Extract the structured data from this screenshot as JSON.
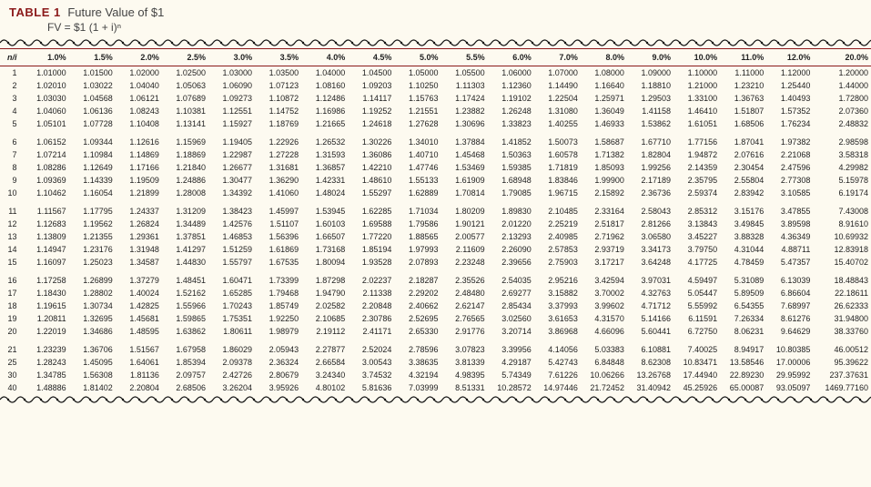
{
  "title_label": "TABLE 1",
  "title_text": "Future Value of $1",
  "subtitle": "FV = $1 (1 + i)ⁿ",
  "colors": {
    "accent": "#8b1a1a",
    "background": "#fdfaf0",
    "text": "#222222"
  },
  "header_first": "n/i",
  "columns": [
    "1.0%",
    "1.5%",
    "2.0%",
    "2.5%",
    "3.0%",
    "3.5%",
    "4.0%",
    "4.5%",
    "5.0%",
    "5.5%",
    "6.0%",
    "7.0%",
    "8.0%",
    "9.0%",
    "10.0%",
    "11.0%",
    "12.0%",
    "20.0%"
  ],
  "groups": [
    {
      "rows": [
        {
          "n": "1",
          "v": [
            "1.01000",
            "1.01500",
            "1.02000",
            "1.02500",
            "1.03000",
            "1.03500",
            "1.04000",
            "1.04500",
            "1.05000",
            "1.05500",
            "1.06000",
            "1.07000",
            "1.08000",
            "1.09000",
            "1.10000",
            "1.11000",
            "1.12000",
            "1.20000"
          ]
        },
        {
          "n": "2",
          "v": [
            "1.02010",
            "1.03022",
            "1.04040",
            "1.05063",
            "1.06090",
            "1.07123",
            "1.08160",
            "1.09203",
            "1.10250",
            "1.11303",
            "1.12360",
            "1.14490",
            "1.16640",
            "1.18810",
            "1.21000",
            "1.23210",
            "1.25440",
            "1.44000"
          ]
        },
        {
          "n": "3",
          "v": [
            "1.03030",
            "1.04568",
            "1.06121",
            "1.07689",
            "1.09273",
            "1.10872",
            "1.12486",
            "1.14117",
            "1.15763",
            "1.17424",
            "1.19102",
            "1.22504",
            "1.25971",
            "1.29503",
            "1.33100",
            "1.36763",
            "1.40493",
            "1.72800"
          ]
        },
        {
          "n": "4",
          "v": [
            "1.04060",
            "1.06136",
            "1.08243",
            "1.10381",
            "1.12551",
            "1.14752",
            "1.16986",
            "1.19252",
            "1.21551",
            "1.23882",
            "1.26248",
            "1.31080",
            "1.36049",
            "1.41158",
            "1.46410",
            "1.51807",
            "1.57352",
            "2.07360"
          ]
        },
        {
          "n": "5",
          "v": [
            "1.05101",
            "1.07728",
            "1.10408",
            "1.13141",
            "1.15927",
            "1.18769",
            "1.21665",
            "1.24618",
            "1.27628",
            "1.30696",
            "1.33823",
            "1.40255",
            "1.46933",
            "1.53862",
            "1.61051",
            "1.68506",
            "1.76234",
            "2.48832"
          ]
        }
      ]
    },
    {
      "rows": [
        {
          "n": "6",
          "v": [
            "1.06152",
            "1.09344",
            "1.12616",
            "1.15969",
            "1.19405",
            "1.22926",
            "1.26532",
            "1.30226",
            "1.34010",
            "1.37884",
            "1.41852",
            "1.50073",
            "1.58687",
            "1.67710",
            "1.77156",
            "1.87041",
            "1.97382",
            "2.98598"
          ]
        },
        {
          "n": "7",
          "v": [
            "1.07214",
            "1.10984",
            "1.14869",
            "1.18869",
            "1.22987",
            "1.27228",
            "1.31593",
            "1.36086",
            "1.40710",
            "1.45468",
            "1.50363",
            "1.60578",
            "1.71382",
            "1.82804",
            "1.94872",
            "2.07616",
            "2.21068",
            "3.58318"
          ]
        },
        {
          "n": "8",
          "v": [
            "1.08286",
            "1.12649",
            "1.17166",
            "1.21840",
            "1.26677",
            "1.31681",
            "1.36857",
            "1.42210",
            "1.47746",
            "1.53469",
            "1.59385",
            "1.71819",
            "1.85093",
            "1.99256",
            "2.14359",
            "2.30454",
            "2.47596",
            "4.29982"
          ]
        },
        {
          "n": "9",
          "v": [
            "1.09369",
            "1.14339",
            "1.19509",
            "1.24886",
            "1.30477",
            "1.36290",
            "1.42331",
            "1.48610",
            "1.55133",
            "1.61909",
            "1.68948",
            "1.83846",
            "1.99900",
            "2.17189",
            "2.35795",
            "2.55804",
            "2.77308",
            "5.15978"
          ]
        },
        {
          "n": "10",
          "v": [
            "1.10462",
            "1.16054",
            "1.21899",
            "1.28008",
            "1.34392",
            "1.41060",
            "1.48024",
            "1.55297",
            "1.62889",
            "1.70814",
            "1.79085",
            "1.96715",
            "2.15892",
            "2.36736",
            "2.59374",
            "2.83942",
            "3.10585",
            "6.19174"
          ]
        }
      ]
    },
    {
      "rows": [
        {
          "n": "11",
          "v": [
            "1.11567",
            "1.17795",
            "1.24337",
            "1.31209",
            "1.38423",
            "1.45997",
            "1.53945",
            "1.62285",
            "1.71034",
            "1.80209",
            "1.89830",
            "2.10485",
            "2.33164",
            "2.58043",
            "2.85312",
            "3.15176",
            "3.47855",
            "7.43008"
          ]
        },
        {
          "n": "12",
          "v": [
            "1.12683",
            "1.19562",
            "1.26824",
            "1.34489",
            "1.42576",
            "1.51107",
            "1.60103",
            "1.69588",
            "1.79586",
            "1.90121",
            "2.01220",
            "2.25219",
            "2.51817",
            "2.81266",
            "3.13843",
            "3.49845",
            "3.89598",
            "8.91610"
          ]
        },
        {
          "n": "13",
          "v": [
            "1.13809",
            "1.21355",
            "1.29361",
            "1.37851",
            "1.46853",
            "1.56396",
            "1.66507",
            "1.77220",
            "1.88565",
            "2.00577",
            "2.13293",
            "2.40985",
            "2.71962",
            "3.06580",
            "3.45227",
            "3.88328",
            "4.36349",
            "10.69932"
          ]
        },
        {
          "n": "14",
          "v": [
            "1.14947",
            "1.23176",
            "1.31948",
            "1.41297",
            "1.51259",
            "1.61869",
            "1.73168",
            "1.85194",
            "1.97993",
            "2.11609",
            "2.26090",
            "2.57853",
            "2.93719",
            "3.34173",
            "3.79750",
            "4.31044",
            "4.88711",
            "12.83918"
          ]
        },
        {
          "n": "15",
          "v": [
            "1.16097",
            "1.25023",
            "1.34587",
            "1.44830",
            "1.55797",
            "1.67535",
            "1.80094",
            "1.93528",
            "2.07893",
            "2.23248",
            "2.39656",
            "2.75903",
            "3.17217",
            "3.64248",
            "4.17725",
            "4.78459",
            "5.47357",
            "15.40702"
          ]
        }
      ]
    },
    {
      "rows": [
        {
          "n": "16",
          "v": [
            "1.17258",
            "1.26899",
            "1.37279",
            "1.48451",
            "1.60471",
            "1.73399",
            "1.87298",
            "2.02237",
            "2.18287",
            "2.35526",
            "2.54035",
            "2.95216",
            "3.42594",
            "3.97031",
            "4.59497",
            "5.31089",
            "6.13039",
            "18.48843"
          ]
        },
        {
          "n": "17",
          "v": [
            "1.18430",
            "1.28802",
            "1.40024",
            "1.52162",
            "1.65285",
            "1.79468",
            "1.94790",
            "2.11338",
            "2.29202",
            "2.48480",
            "2.69277",
            "3.15882",
            "3.70002",
            "4.32763",
            "5.05447",
            "5.89509",
            "6.86604",
            "22.18611"
          ]
        },
        {
          "n": "18",
          "v": [
            "1.19615",
            "1.30734",
            "1.42825",
            "1.55966",
            "1.70243",
            "1.85749",
            "2.02582",
            "2.20848",
            "2.40662",
            "2.62147",
            "2.85434",
            "3.37993",
            "3.99602",
            "4.71712",
            "5.55992",
            "6.54355",
            "7.68997",
            "26.62333"
          ]
        },
        {
          "n": "19",
          "v": [
            "1.20811",
            "1.32695",
            "1.45681",
            "1.59865",
            "1.75351",
            "1.92250",
            "2.10685",
            "2.30786",
            "2.52695",
            "2.76565",
            "3.02560",
            "3.61653",
            "4.31570",
            "5.14166",
            "6.11591",
            "7.26334",
            "8.61276",
            "31.94800"
          ]
        },
        {
          "n": "20",
          "v": [
            "1.22019",
            "1.34686",
            "1.48595",
            "1.63862",
            "1.80611",
            "1.98979",
            "2.19112",
            "2.41171",
            "2.65330",
            "2.91776",
            "3.20714",
            "3.86968",
            "4.66096",
            "5.60441",
            "6.72750",
            "8.06231",
            "9.64629",
            "38.33760"
          ]
        }
      ]
    },
    {
      "rows": [
        {
          "n": "21",
          "v": [
            "1.23239",
            "1.36706",
            "1.51567",
            "1.67958",
            "1.86029",
            "2.05943",
            "2.27877",
            "2.52024",
            "2.78596",
            "3.07823",
            "3.39956",
            "4.14056",
            "5.03383",
            "6.10881",
            "7.40025",
            "8.94917",
            "10.80385",
            "46.00512"
          ]
        },
        {
          "n": "25",
          "v": [
            "1.28243",
            "1.45095",
            "1.64061",
            "1.85394",
            "2.09378",
            "2.36324",
            "2.66584",
            "3.00543",
            "3.38635",
            "3.81339",
            "4.29187",
            "5.42743",
            "6.84848",
            "8.62308",
            "10.83471",
            "13.58546",
            "17.00006",
            "95.39622"
          ]
        },
        {
          "n": "30",
          "v": [
            "1.34785",
            "1.56308",
            "1.81136",
            "2.09757",
            "2.42726",
            "2.80679",
            "3.24340",
            "3.74532",
            "4.32194",
            "4.98395",
            "5.74349",
            "7.61226",
            "10.06266",
            "13.26768",
            "17.44940",
            "22.89230",
            "29.95992",
            "237.37631"
          ]
        },
        {
          "n": "40",
          "v": [
            "1.48886",
            "1.81402",
            "2.20804",
            "2.68506",
            "3.26204",
            "3.95926",
            "4.80102",
            "5.81636",
            "7.03999",
            "8.51331",
            "10.28572",
            "14.97446",
            "21.72452",
            "31.40942",
            "45.25926",
            "65.00087",
            "93.05097",
            "1469.77160"
          ]
        }
      ]
    }
  ]
}
